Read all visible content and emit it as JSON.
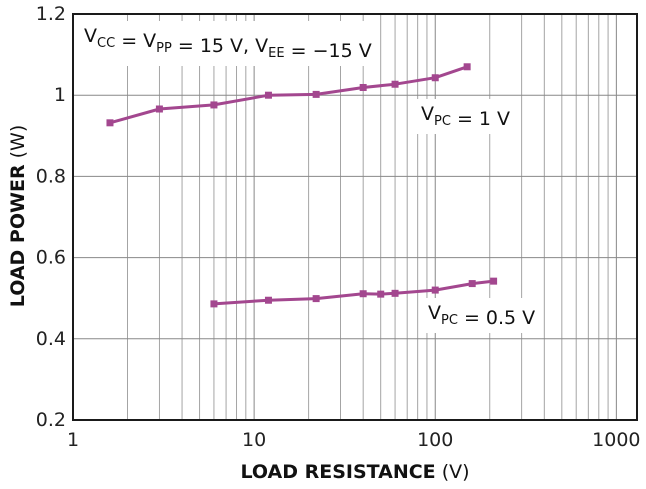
{
  "chart_data": {
    "type": "line",
    "x_scale": "log",
    "xlim": [
      1,
      1300
    ],
    "ylim": [
      0.2,
      1.2
    ],
    "x_ticks": [
      1,
      10,
      100,
      1000
    ],
    "x_tick_labels": [
      "1",
      "10",
      "100",
      "1000"
    ],
    "y_ticks": [
      0.2,
      0.4,
      0.6,
      0.8,
      1.0,
      1.2
    ],
    "y_tick_labels": [
      "0.2",
      "0.4",
      "0.6",
      "0.8",
      "1",
      "1.2"
    ],
    "xlabel": {
      "bold": "LOAD RESISTANCE",
      "unit": " (V)"
    },
    "ylabel": {
      "bold": "LOAD POWER",
      "unit": " (W)"
    },
    "grid": true,
    "line_color": "#a3478f",
    "series": [
      {
        "name": "VPC = 1 V",
        "x": [
          1.6,
          3.0,
          6.0,
          12.0,
          22.0,
          40.0,
          60.0,
          100.0,
          150.0
        ],
        "y": [
          0.932,
          0.966,
          0.976,
          1.0,
          1.002,
          1.019,
          1.027,
          1.043,
          1.07
        ]
      },
      {
        "name": "VPC = 0.5 V",
        "x": [
          6.0,
          12.0,
          22.0,
          40.0,
          50.0,
          60.0,
          100.0,
          160.0,
          210.0
        ],
        "y": [
          0.486,
          0.495,
          0.499,
          0.511,
          0.51,
          0.512,
          0.52,
          0.536,
          0.542
        ]
      }
    ],
    "annotations": {
      "conditions": {
        "parts": [
          {
            "t": "V"
          },
          {
            "t": "CC",
            "sub": true
          },
          {
            "t": " = V"
          },
          {
            "t": "PP",
            "sub": true
          },
          {
            "t": " = 15 V, V"
          },
          {
            "t": "EE",
            "sub": true
          },
          {
            "t": " = −15 V"
          }
        ]
      },
      "vpc1": {
        "parts": [
          {
            "t": "V"
          },
          {
            "t": "PC",
            "sub": true
          },
          {
            "t": " = 1 V"
          }
        ]
      },
      "vpc05": {
        "parts": [
          {
            "t": "V"
          },
          {
            "t": "PC",
            "sub": true
          },
          {
            "t": " = 0.5 V"
          }
        ]
      }
    }
  }
}
